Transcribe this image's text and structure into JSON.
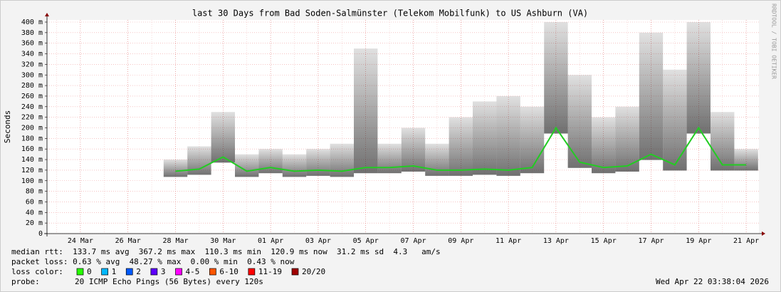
{
  "chart_data": {
    "type": "smokeping",
    "title": "last 30 Days from Bad Soden-Salmünster (Telekom Mobilfunk) to US Ashburn (VA)",
    "y_label": "Seconds",
    "side_text": "RRDTOOL / TOBI OETIKER",
    "categories": [
      null,
      "24 Mar",
      null,
      "26 Mar",
      null,
      "28 Mar",
      null,
      "30 Mar",
      null,
      "01 Apr",
      null,
      "03 Apr",
      null,
      "05 Apr",
      null,
      "07 Apr",
      null,
      "09 Apr",
      null,
      "11 Apr",
      null,
      "13 Apr",
      null,
      "15 Apr",
      null,
      "17 Apr",
      null,
      "19 Apr",
      null,
      "21 Apr"
    ],
    "series": [
      {
        "color": "#22cc22",
        "values": [
          null,
          null,
          null,
          null,
          null,
          0.118,
          0.122,
          0.145,
          0.118,
          0.125,
          0.118,
          0.12,
          0.118,
          0.125,
          0.125,
          0.128,
          0.12,
          0.12,
          0.122,
          0.12,
          0.125,
          0.2,
          0.135,
          0.125,
          0.128,
          0.15,
          0.13,
          0.2,
          0.13,
          0.13
        ]
      },
      {
        "color": "#333333",
        "values": [
          null,
          null,
          null,
          null,
          null,
          0.14,
          0.165,
          0.23,
          0.15,
          0.16,
          0.15,
          0.16,
          0.17,
          0.35,
          0.17,
          0.2,
          0.17,
          0.22,
          0.25,
          0.26,
          0.24,
          0.4,
          0.3,
          0.22,
          0.24,
          0.38,
          0.31,
          0.4,
          0.23,
          0.16
        ]
      }
    ],
    "ylim": [
      0,
      0.4
    ],
    "yticks": [
      0,
      {
        "value": 0.02,
        "label": "20 m"
      },
      {
        "value": 0.04,
        "label": "40 m"
      },
      {
        "value": 0.06,
        "label": "60 m"
      },
      {
        "value": 0.08,
        "label": "80 m"
      },
      {
        "value": 0.1,
        "label": "100 m"
      },
      {
        "value": 0.12,
        "label": "120 m"
      },
      {
        "value": 0.14,
        "label": "140 m"
      },
      {
        "value": 0.16,
        "label": "160 m"
      },
      {
        "value": 0.18,
        "label": "180 m"
      },
      {
        "value": 0.2,
        "label": "200 m"
      },
      {
        "value": 0.22,
        "label": "220 m"
      },
      {
        "value": 0.24,
        "label": "240 m"
      },
      {
        "value": 0.26,
        "label": "260 m"
      },
      {
        "value": 0.28,
        "label": "280 m"
      },
      {
        "value": 0.3,
        "label": "300 m"
      },
      {
        "value": 0.32,
        "label": "320 m"
      },
      {
        "value": 0.34,
        "label": "340 m"
      },
      {
        "value": 0.36,
        "label": "360 m"
      },
      {
        "value": 0.38,
        "label": "380 m"
      },
      {
        "value": 0.4,
        "label": "400 m"
      }
    ],
    "grid": true,
    "stats": [
      "median rtt:  133.7 ms avg  367.2 ms max  110.3 ms min  120.9 ms now  31.2 ms sd  4.3   am/s",
      "packet loss: 0.63 % avg  48.27 % max  0.00 % min  0.43 % now"
    ],
    "loss_title": "loss color:",
    "loss_colors": [
      {
        "label": "0",
        "color": "#26ff00"
      },
      {
        "label": "1",
        "color": "#00b8ff"
      },
      {
        "label": "2",
        "color": "#0059ff"
      },
      {
        "label": "3",
        "color": "#5e00ff"
      },
      {
        "label": "4-5",
        "color": "#ff00ff"
      },
      {
        "label": "6-10",
        "color": "#ff5500"
      },
      {
        "label": "11-19",
        "color": "#ff0000"
      },
      {
        "label": "20/20",
        "color": "#a00000"
      }
    ],
    "probe_title": "probe:",
    "probe": "20 ICMP Echo Pings (56 Bytes) every 120s",
    "timestamp": "Wed Apr 22 03:38:04 2026"
  }
}
